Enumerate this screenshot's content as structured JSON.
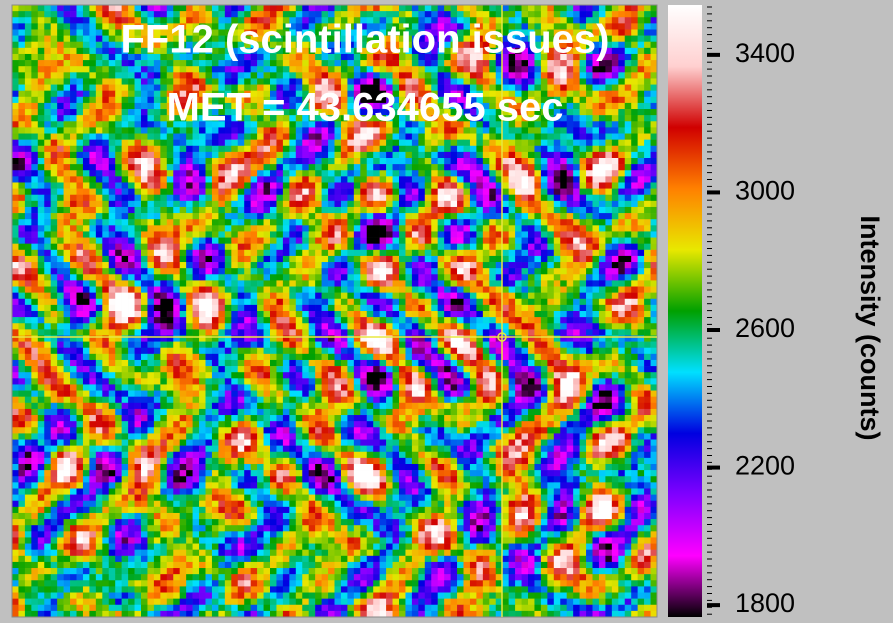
{
  "chart_data": {
    "type": "heatmap",
    "title": "FF12 (scintillation issues)",
    "subtitle": "MET = 43.634655 sec",
    "colorbar": {
      "label": "Intensity (counts)",
      "lim": [
        1780,
        3545
      ],
      "ticks": [
        1800,
        2200,
        2600,
        3000,
        3400
      ],
      "colors": [
        "#000000",
        "#ff00ff",
        "#8000ff",
        "#0000e0",
        "#00e0ff",
        "#00a000",
        "#e8e800",
        "#ff8000",
        "#d00000",
        "#ffd0d0",
        "#ffffff"
      ]
    }
  }
}
